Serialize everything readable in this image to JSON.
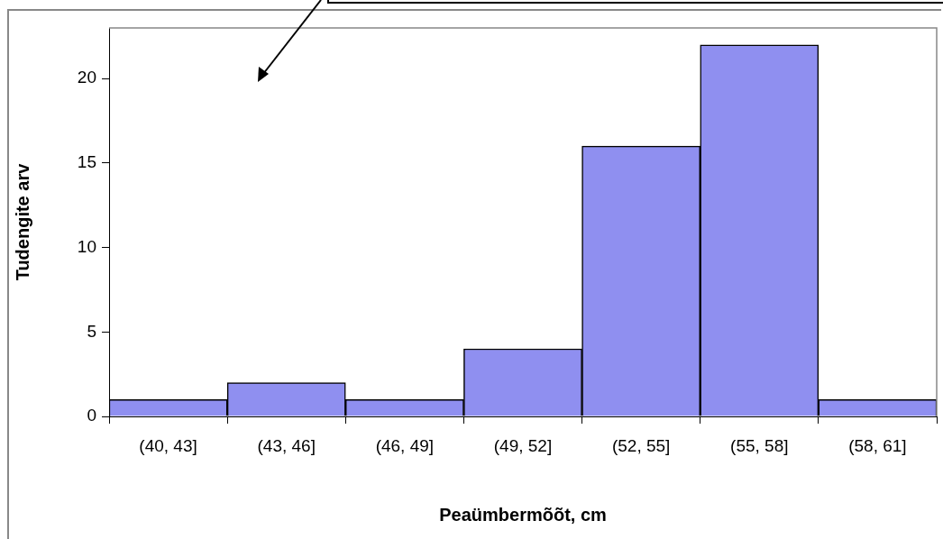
{
  "chart_data": {
    "type": "bar",
    "xlabel": "Peaümbermõõt, cm",
    "ylabel": "Tudengite arv",
    "categories": [
      "(40, 43]",
      "(43, 46]",
      "(46, 49]",
      "(49, 52]",
      "(52, 55]",
      "(55, 58]",
      "(58, 61]"
    ],
    "values": [
      1,
      2,
      1,
      4,
      16,
      22,
      1
    ],
    "color": "#8f8ff0",
    "ylim": [
      0,
      23
    ],
    "yticks": [
      0,
      5,
      10,
      15,
      20
    ],
    "grid": false,
    "legend": false
  }
}
